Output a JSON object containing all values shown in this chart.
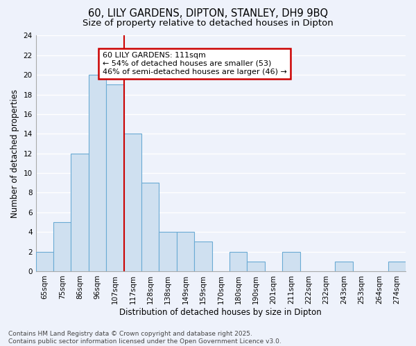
{
  "title": "60, LILY GARDENS, DIPTON, STANLEY, DH9 9BQ",
  "subtitle": "Size of property relative to detached houses in Dipton",
  "xlabel": "Distribution of detached houses by size in Dipton",
  "ylabel": "Number of detached properties",
  "bar_labels": [
    "65sqm",
    "75sqm",
    "86sqm",
    "96sqm",
    "107sqm",
    "117sqm",
    "128sqm",
    "138sqm",
    "149sqm",
    "159sqm",
    "170sqm",
    "180sqm",
    "190sqm",
    "201sqm",
    "211sqm",
    "222sqm",
    "232sqm",
    "243sqm",
    "253sqm",
    "264sqm",
    "274sqm"
  ],
  "bar_values": [
    2,
    5,
    12,
    20,
    19,
    14,
    9,
    4,
    4,
    3,
    0,
    2,
    1,
    0,
    2,
    0,
    0,
    1,
    0,
    0,
    1
  ],
  "bar_color": "#cfe0f0",
  "bar_edge_color": "#6aaad4",
  "vline_x": 4.5,
  "vline_color": "#cc0000",
  "annotation_text": "60 LILY GARDENS: 111sqm\n← 54% of detached houses are smaller (53)\n46% of semi-detached houses are larger (46) →",
  "annotation_box_color": "#ffffff",
  "annotation_box_edge": "#cc0000",
  "ylim": [
    0,
    24
  ],
  "yticks": [
    0,
    2,
    4,
    6,
    8,
    10,
    12,
    14,
    16,
    18,
    20,
    22,
    24
  ],
  "footer_text": "Contains HM Land Registry data © Crown copyright and database right 2025.\nContains public sector information licensed under the Open Government Licence v3.0.",
  "bg_color": "#eef2fb",
  "plot_bg_color": "#eef2fb",
  "grid_color": "#ffffff",
  "title_fontsize": 10.5,
  "subtitle_fontsize": 9.5,
  "axis_label_fontsize": 8.5,
  "tick_fontsize": 7.5,
  "footer_fontsize": 6.5,
  "annotation_fontsize": 8.0
}
